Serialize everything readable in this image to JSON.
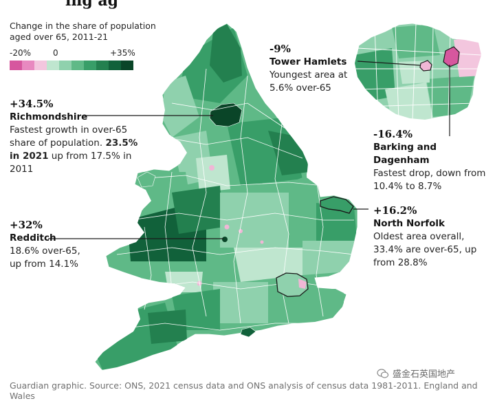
{
  "header": {
    "title_fragment": "ing ag"
  },
  "legend": {
    "title": "Change in the share of population aged over 65, 2011-21",
    "min_label": "-20%",
    "zero_label": "0",
    "max_label": "+35%",
    "colors": [
      "#d6579e",
      "#e889c0",
      "#f3c6de",
      "#bfe6cf",
      "#8fd1ad",
      "#5fb987",
      "#389e68",
      "#23804f",
      "#11613a",
      "#0a4528"
    ]
  },
  "annotations": {
    "richmondshire": {
      "value": "+34.5%",
      "name": "Richmondshire",
      "desc_1": "Fastest growth in over-65 share of population. ",
      "desc_2": "23.5% in 2021",
      "desc_3": " up from 17.5% in 2011"
    },
    "redditch": {
      "value": "+32%",
      "name": "Redditch",
      "desc": "18.6% over-65, up from 14.1%"
    },
    "tower_hamlets": {
      "value": "-9%",
      "name": "Tower Hamlets",
      "desc": "Youngest area at 5.6% over-65"
    },
    "barking": {
      "value": "-16.4%",
      "name": "Barking and Dagenham",
      "desc": "Fastest drop, down from 10.4% to 8.7%"
    },
    "north_norfolk": {
      "value": "+16.2%",
      "name": "North Norfolk",
      "desc": "Oldest area overall, 33.4% are over-65, up from 28.8%"
    }
  },
  "source": "Guardian graphic. Source: ONS, 2021 census data and ONS analysis of census data 1981-2011. England and Wales",
  "watermark": "盛金石英国地产",
  "colors": {
    "fill_light": "#8fd1ad",
    "fill_mid": "#5fb987",
    "fill_dark": "#2c8a58",
    "fill_darkest": "#0f4e2f",
    "fill_pink": "#f0b7d6",
    "fill_magenta": "#d6579e",
    "text": "#121212",
    "source_text": "#707070"
  }
}
